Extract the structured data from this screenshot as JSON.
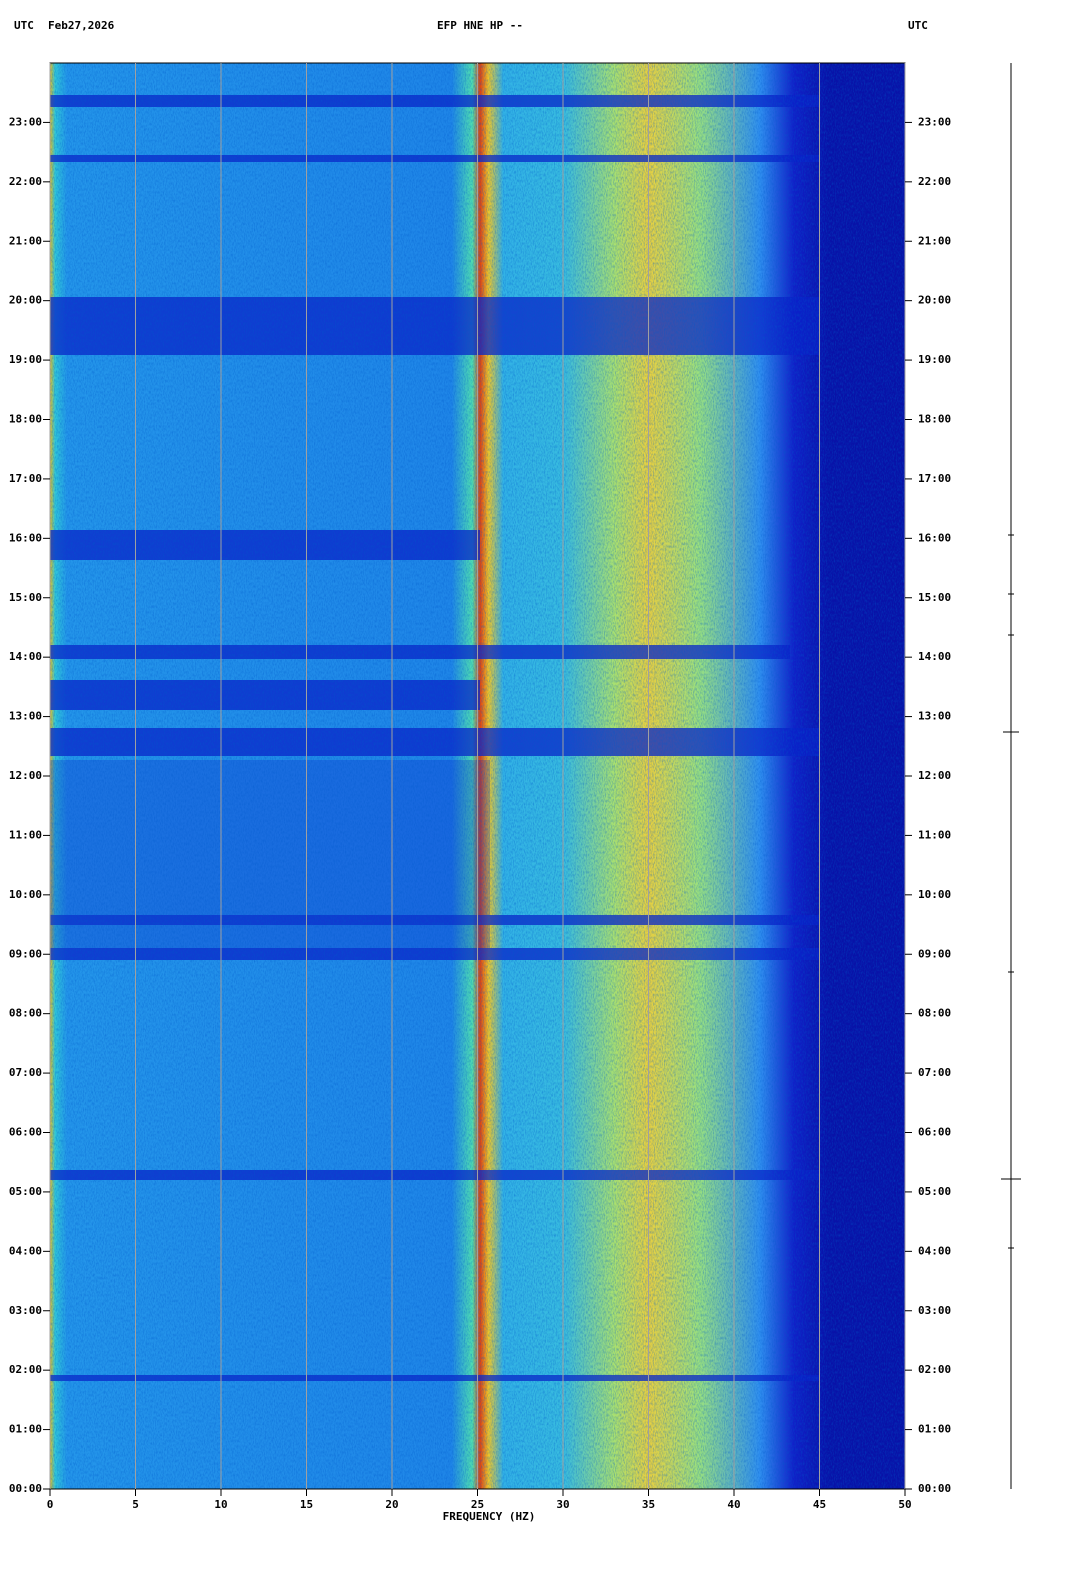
{
  "chart_data": {
    "type": "spectrogram",
    "title": "EFP HNE HP --",
    "timezone_left": "UTC",
    "date": "Feb27,2026",
    "timezone_right": "UTC",
    "xlabel": "FREQUENCY (HZ)",
    "xlim": [
      0,
      50
    ],
    "xticks": [
      0,
      5,
      10,
      15,
      20,
      25,
      30,
      35,
      40,
      45,
      50
    ],
    "ylim": [
      0,
      24
    ],
    "yticks": [
      {
        "value": 0,
        "label": "00:00"
      },
      {
        "value": 1,
        "label": "01:00"
      },
      {
        "value": 2,
        "label": "02:00"
      },
      {
        "value": 3,
        "label": "03:00"
      },
      {
        "value": 4,
        "label": "04:00"
      },
      {
        "value": 5,
        "label": "05:00"
      },
      {
        "value": 6,
        "label": "06:00"
      },
      {
        "value": 7,
        "label": "07:00"
      },
      {
        "value": 8,
        "label": "08:00"
      },
      {
        "value": 9,
        "label": "09:00"
      },
      {
        "value": 10,
        "label": "10:00"
      },
      {
        "value": 11,
        "label": "11:00"
      },
      {
        "value": 12,
        "label": "12:00"
      },
      {
        "value": 13,
        "label": "13:00"
      },
      {
        "value": 14,
        "label": "14:00"
      },
      {
        "value": 15,
        "label": "15:00"
      },
      {
        "value": 16,
        "label": "16:00"
      },
      {
        "value": 17,
        "label": "17:00"
      },
      {
        "value": 18,
        "label": "18:00"
      },
      {
        "value": 19,
        "label": "19:00"
      },
      {
        "value": 20,
        "label": "20:00"
      },
      {
        "value": 21,
        "label": "21:00"
      },
      {
        "value": 22,
        "label": "22:00"
      },
      {
        "value": 23,
        "label": "23:00"
      }
    ],
    "grid": true,
    "grid_color": "#a0a0a0"
  }
}
